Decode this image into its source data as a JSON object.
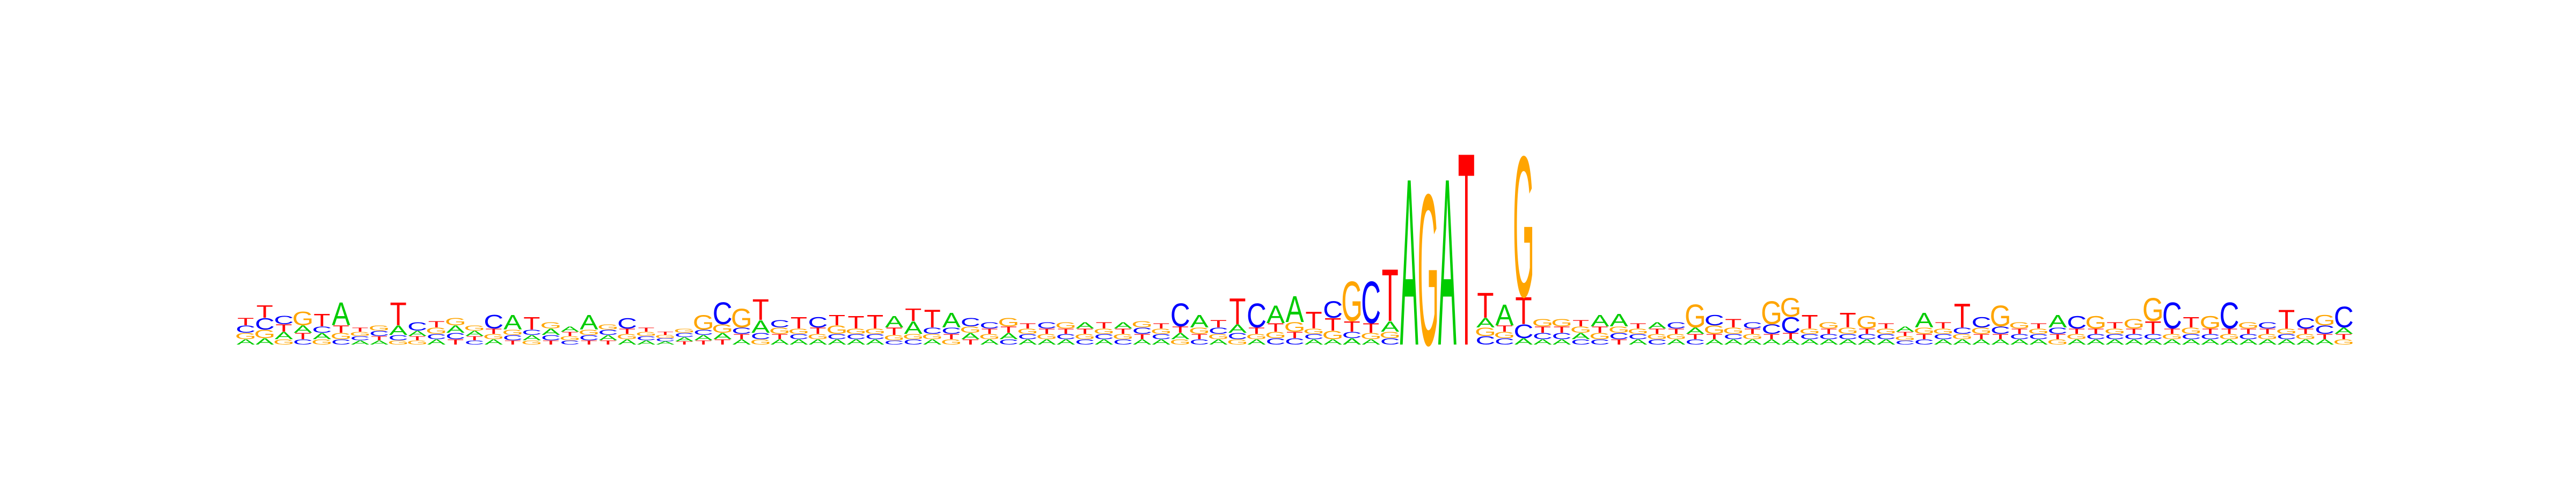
{
  "chart_data": {
    "type": "sequence-logo",
    "alphabet": [
      "A",
      "C",
      "G",
      "T"
    ],
    "colors": {
      "A": "#00cc00",
      "C": "#0000ff",
      "G": "#ffa500",
      "T": "#ff0000"
    },
    "ylim": [
      0,
      2
    ],
    "positions": [
      {
        "A": 0.05,
        "C": 0.07,
        "G": 0.06,
        "T": 0.07
      },
      {
        "A": 0.06,
        "C": 0.11,
        "G": 0.08,
        "T": 0.12
      },
      {
        "A": 0.07,
        "C": 0.08,
        "G": 0.05,
        "T": 0.07
      },
      {
        "A": 0.07,
        "C": 0.05,
        "G": 0.13,
        "T": 0.06
      },
      {
        "A": 0.06,
        "C": 0.06,
        "G": 0.05,
        "T": 0.12
      },
      {
        "A": 0.22,
        "C": 0.05,
        "G": 0.06,
        "T": 0.07
      },
      {
        "A": 0.04,
        "C": 0.04,
        "G": 0.04,
        "T": 0.04
      },
      {
        "A": 0.04,
        "C": 0.05,
        "G": 0.05,
        "T": 0.04
      },
      {
        "A": 0.09,
        "C": 0.05,
        "G": 0.04,
        "T": 0.22
      },
      {
        "A": 0.05,
        "C": 0.08,
        "G": 0.04,
        "T": 0.04
      },
      {
        "A": 0.05,
        "C": 0.05,
        "G": 0.06,
        "T": 0.06
      },
      {
        "A": 0.07,
        "C": 0.06,
        "G": 0.07,
        "T": 0.05
      },
      {
        "A": 0.05,
        "C": 0.04,
        "G": 0.05,
        "T": 0.04
      },
      {
        "A": 0.05,
        "C": 0.13,
        "G": 0.05,
        "T": 0.05
      },
      {
        "A": 0.14,
        "C": 0.05,
        "G": 0.05,
        "T": 0.04
      },
      {
        "A": 0.05,
        "C": 0.05,
        "G": 0.04,
        "T": 0.12
      },
      {
        "A": 0.06,
        "C": 0.05,
        "G": 0.06,
        "T": 0.04
      },
      {
        "A": 0.05,
        "C": 0.04,
        "G": 0.04,
        "T": 0.04
      },
      {
        "A": 0.14,
        "C": 0.05,
        "G": 0.05,
        "T": 0.04
      },
      {
        "A": 0.05,
        "C": 0.05,
        "G": 0.05,
        "T": 0.04
      },
      {
        "A": 0.05,
        "C": 0.1,
        "G": 0.05,
        "T": 0.05
      },
      {
        "A": 0.04,
        "C": 0.04,
        "G": 0.04,
        "T": 0.04
      },
      {
        "A": 0.03,
        "C": 0.03,
        "G": 0.03,
        "T": 0.03
      },
      {
        "A": 0.04,
        "C": 0.04,
        "G": 0.04,
        "T": 0.03
      },
      {
        "A": 0.05,
        "C": 0.05,
        "G": 0.14,
        "T": 0.04
      },
      {
        "A": 0.06,
        "C": 0.21,
        "G": 0.08,
        "T": 0.05
      },
      {
        "A": 0.05,
        "C": 0.06,
        "G": 0.18,
        "T": 0.05
      },
      {
        "A": 0.12,
        "C": 0.06,
        "G": 0.05,
        "T": 0.2
      },
      {
        "A": 0.05,
        "C": 0.07,
        "G": 0.06,
        "T": 0.05
      },
      {
        "A": 0.05,
        "C": 0.05,
        "G": 0.05,
        "T": 0.11
      },
      {
        "A": 0.05,
        "C": 0.1,
        "G": 0.05,
        "T": 0.06
      },
      {
        "A": 0.05,
        "C": 0.05,
        "G": 0.08,
        "T": 0.1
      },
      {
        "A": 0.05,
        "C": 0.05,
        "G": 0.05,
        "T": 0.12
      },
      {
        "A": 0.05,
        "C": 0.05,
        "G": 0.05,
        "T": 0.13
      },
      {
        "A": 0.11,
        "C": 0.04,
        "G": 0.05,
        "T": 0.07
      },
      {
        "A": 0.12,
        "C": 0.05,
        "G": 0.05,
        "T": 0.12
      },
      {
        "A": 0.05,
        "C": 0.06,
        "G": 0.05,
        "T": 0.17
      },
      {
        "A": 0.14,
        "C": 0.06,
        "G": 0.05,
        "T": 0.05
      },
      {
        "A": 0.06,
        "C": 0.08,
        "G": 0.06,
        "T": 0.05
      },
      {
        "A": 0.05,
        "C": 0.06,
        "G": 0.05,
        "T": 0.05
      },
      {
        "A": 0.06,
        "C": 0.05,
        "G": 0.08,
        "T": 0.06
      },
      {
        "A": 0.05,
        "C": 0.05,
        "G": 0.05,
        "T": 0.05
      },
      {
        "A": 0.05,
        "C": 0.06,
        "G": 0.05,
        "T": 0.05
      },
      {
        "A": 0.05,
        "C": 0.05,
        "G": 0.06,
        "T": 0.05
      },
      {
        "A": 0.06,
        "C": 0.05,
        "G": 0.05,
        "T": 0.05
      },
      {
        "A": 0.05,
        "C": 0.05,
        "G": 0.05,
        "T": 0.06
      },
      {
        "A": 0.06,
        "C": 0.05,
        "G": 0.05,
        "T": 0.05
      },
      {
        "A": 0.05,
        "C": 0.06,
        "G": 0.06,
        "T": 0.05
      },
      {
        "A": 0.05,
        "C": 0.05,
        "G": 0.05,
        "T": 0.05
      },
      {
        "A": 0.06,
        "C": 0.22,
        "G": 0.05,
        "T": 0.06
      },
      {
        "A": 0.12,
        "C": 0.05,
        "G": 0.06,
        "T": 0.05
      },
      {
        "A": 0.05,
        "C": 0.06,
        "G": 0.05,
        "T": 0.07
      },
      {
        "A": 0.08,
        "C": 0.06,
        "G": 0.05,
        "T": 0.25
      },
      {
        "A": 0.05,
        "C": 0.23,
        "G": 0.05,
        "T": 0.06
      },
      {
        "A": 0.17,
        "C": 0.06,
        "G": 0.06,
        "T": 0.08
      },
      {
        "A": 0.25,
        "C": 0.06,
        "G": 0.09,
        "T": 0.06
      },
      {
        "A": 0.05,
        "C": 0.05,
        "G": 0.05,
        "T": 0.16
      },
      {
        "A": 0.05,
        "C": 0.16,
        "G": 0.08,
        "T": 0.12
      },
      {
        "A": 0.06,
        "C": 0.06,
        "G": 0.38,
        "T": 0.1
      },
      {
        "A": 0.05,
        "C": 0.4,
        "G": 0.06,
        "T": 0.09
      },
      {
        "A": 0.1,
        "C": 0.06,
        "G": 0.06,
        "T": 0.5
      },
      {
        "A": 1.6,
        "C": 0.0,
        "G": 0.0,
        "T": 0.0
      },
      {
        "A": 0.0,
        "C": 0.0,
        "G": 1.45,
        "T": 0.0
      },
      {
        "A": 1.6,
        "C": 0.0,
        "G": 0.0,
        "T": 0.0
      },
      {
        "A": 0.0,
        "C": 0.0,
        "G": 0.0,
        "T": 1.85
      },
      {
        "A": 0.09,
        "C": 0.08,
        "G": 0.08,
        "T": 0.24
      },
      {
        "A": 0.2,
        "C": 0.06,
        "G": 0.06,
        "T": 0.06
      },
      {
        "A": 0.06,
        "C": 0.13,
        "G": 1.35,
        "T": 0.26
      },
      {
        "A": 0.05,
        "C": 0.06,
        "G": 0.07,
        "T": 0.06
      },
      {
        "A": 0.05,
        "C": 0.06,
        "G": 0.07,
        "T": 0.06
      },
      {
        "A": 0.06,
        "C": 0.05,
        "G": 0.06,
        "T": 0.06
      },
      {
        "A": 0.11,
        "C": 0.05,
        "G": 0.06,
        "T": 0.06
      },
      {
        "A": 0.12,
        "C": 0.06,
        "G": 0.06,
        "T": 0.05
      },
      {
        "A": 0.05,
        "C": 0.05,
        "G": 0.05,
        "T": 0.05
      },
      {
        "A": 0.06,
        "C": 0.05,
        "G": 0.05,
        "T": 0.05
      },
      {
        "A": 0.05,
        "C": 0.06,
        "G": 0.05,
        "T": 0.05
      },
      {
        "A": 0.06,
        "C": 0.05,
        "G": 0.22,
        "T": 0.05
      },
      {
        "A": 0.05,
        "C": 0.1,
        "G": 0.08,
        "T": 0.05
      },
      {
        "A": 0.05,
        "C": 0.05,
        "G": 0.06,
        "T": 0.08
      },
      {
        "A": 0.05,
        "C": 0.06,
        "G": 0.05,
        "T": 0.05
      },
      {
        "A": 0.05,
        "C": 0.09,
        "G": 0.22,
        "T": 0.05
      },
      {
        "A": 0.05,
        "C": 0.15,
        "G": 0.18,
        "T": 0.06
      },
      {
        "A": 0.05,
        "C": 0.05,
        "G": 0.05,
        "T": 0.13
      },
      {
        "A": 0.05,
        "C": 0.05,
        "G": 0.06,
        "T": 0.05
      },
      {
        "A": 0.05,
        "C": 0.05,
        "G": 0.06,
        "T": 0.14
      },
      {
        "A": 0.05,
        "C": 0.05,
        "G": 0.12,
        "T": 0.05
      },
      {
        "A": 0.05,
        "C": 0.05,
        "G": 0.05,
        "T": 0.05
      },
      {
        "A": 0.05,
        "C": 0.04,
        "G": 0.04,
        "T": 0.04
      },
      {
        "A": 0.14,
        "C": 0.05,
        "G": 0.06,
        "T": 0.05
      },
      {
        "A": 0.05,
        "C": 0.05,
        "G": 0.05,
        "T": 0.06
      },
      {
        "A": 0.05,
        "C": 0.06,
        "G": 0.05,
        "T": 0.23
      },
      {
        "A": 0.05,
        "C": 0.1,
        "G": 0.06,
        "T": 0.05
      },
      {
        "A": 0.05,
        "C": 0.07,
        "G": 0.2,
        "T": 0.05
      },
      {
        "A": 0.05,
        "C": 0.05,
        "G": 0.06,
        "T": 0.05
      },
      {
        "A": 0.05,
        "C": 0.05,
        "G": 0.05,
        "T": 0.05
      },
      {
        "A": 0.12,
        "C": 0.06,
        "G": 0.05,
        "T": 0.05
      },
      {
        "A": 0.05,
        "C": 0.12,
        "G": 0.05,
        "T": 0.05
      },
      {
        "A": 0.05,
        "C": 0.05,
        "G": 0.12,
        "T": 0.05
      },
      {
        "A": 0.05,
        "C": 0.05,
        "G": 0.05,
        "T": 0.06
      },
      {
        "A": 0.05,
        "C": 0.05,
        "G": 0.09,
        "T": 0.05
      },
      {
        "A": 0.05,
        "C": 0.05,
        "G": 0.22,
        "T": 0.12
      },
      {
        "A": 0.05,
        "C": 0.25,
        "G": 0.05,
        "T": 0.05
      },
      {
        "A": 0.05,
        "C": 0.05,
        "G": 0.06,
        "T": 0.1
      },
      {
        "A": 0.05,
        "C": 0.05,
        "G": 0.12,
        "T": 0.05
      },
      {
        "A": 0.05,
        "C": 0.25,
        "G": 0.05,
        "T": 0.05
      },
      {
        "A": 0.05,
        "C": 0.05,
        "G": 0.06,
        "T": 0.05
      },
      {
        "A": 0.05,
        "C": 0.06,
        "G": 0.05,
        "T": 0.05
      },
      {
        "A": 0.05,
        "C": 0.05,
        "G": 0.05,
        "T": 0.18
      },
      {
        "A": 0.05,
        "C": 0.1,
        "G": 0.05,
        "T": 0.05
      },
      {
        "A": 0.05,
        "C": 0.08,
        "G": 0.1,
        "T": 0.05
      },
      {
        "A": 0.06,
        "C": 0.2,
        "G": 0.05,
        "T": 0.05
      }
    ]
  }
}
